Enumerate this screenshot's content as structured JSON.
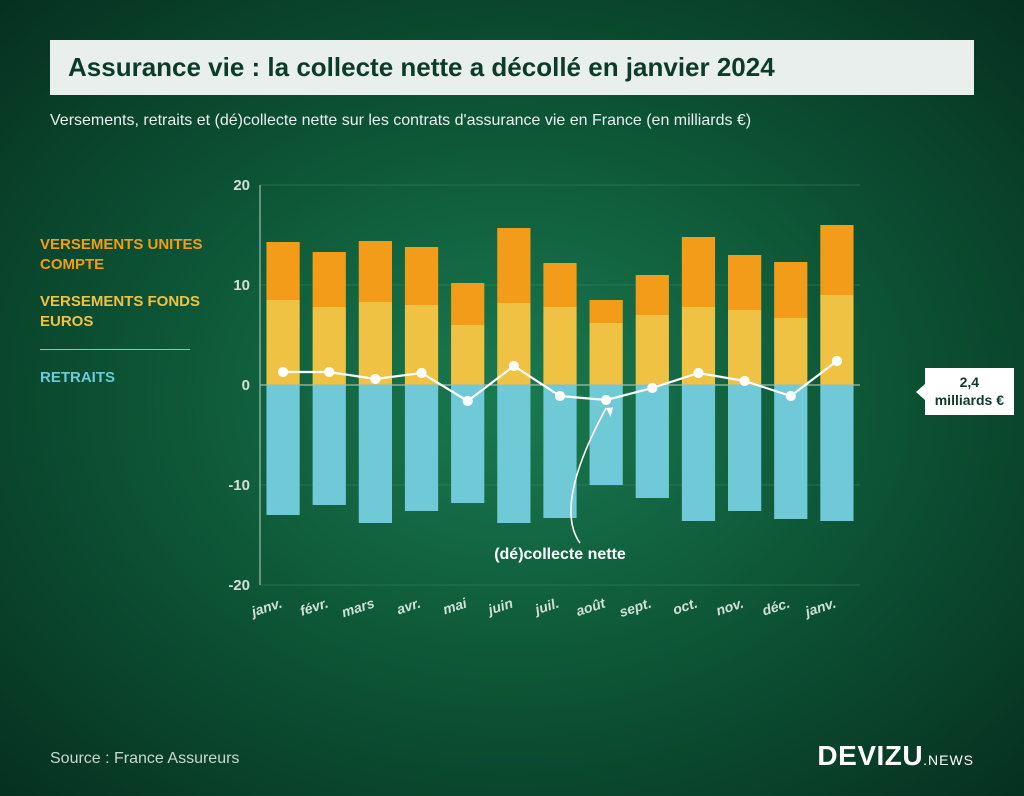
{
  "title": "Assurance vie : la collecte nette a décollé en janvier 2024",
  "subtitle": "Versements, retraits et (dé)collecte nette sur les contrats d'assurance vie en France (en milliards €)",
  "legend": {
    "unites": {
      "label": "VERSEMENTS UNITES COMPTE",
      "color": "#f39c1a"
    },
    "fonds": {
      "label": "VERSEMENTS FONDS EUROS",
      "color": "#f0c244"
    },
    "retraits": {
      "label": "RETRAITS",
      "color": "#6fc9d6"
    }
  },
  "chart": {
    "type": "stacked-bar-with-line",
    "categories": [
      "janv.",
      "févr.",
      "mars",
      "avr.",
      "mai",
      "juin",
      "juil.",
      "août",
      "sept.",
      "oct.",
      "nov.",
      "déc.",
      "janv."
    ],
    "fonds_euros": [
      8.5,
      7.8,
      8.3,
      8.0,
      6.0,
      8.2,
      7.8,
      6.2,
      7.0,
      7.8,
      7.5,
      6.7,
      9.0
    ],
    "unites_compte": [
      5.8,
      5.5,
      6.1,
      5.8,
      4.2,
      7.5,
      4.4,
      2.3,
      4.0,
      7.0,
      5.5,
      5.6,
      7.0
    ],
    "retraits": [
      -13.0,
      -12.0,
      -13.8,
      -12.6,
      -11.8,
      -13.8,
      -13.3,
      -10.0,
      -11.3,
      -13.6,
      -12.6,
      -13.4,
      -13.6
    ],
    "nette": [
      1.3,
      1.3,
      0.6,
      1.2,
      -1.6,
      1.9,
      -1.1,
      -1.5,
      -0.3,
      1.2,
      0.4,
      -1.1,
      2.4
    ],
    "colors": {
      "fonds_euros": "#f0c244",
      "unites_compte": "#f39c1a",
      "retraits": "#6fc9d6",
      "nette_line": "#ffffff",
      "nette_marker_fill": "#ffffff",
      "grid": "#3a8a66",
      "zero_axis": "#9bbfaf",
      "y_axis": "#9bbfaf",
      "tick_text": "#d0e0d8"
    },
    "ylim": [
      -20,
      20
    ],
    "ytick_step": 10,
    "bar_width": 0.72,
    "line_width": 2.2,
    "marker_radius": 4.5,
    "nette_label": "(dé)collecte nette",
    "callout": {
      "value": "2,4",
      "unit": "milliards €"
    }
  },
  "source": "Source : France Assureurs",
  "brand": {
    "name": "DEVIZU",
    "suffix": ".NEWS"
  }
}
